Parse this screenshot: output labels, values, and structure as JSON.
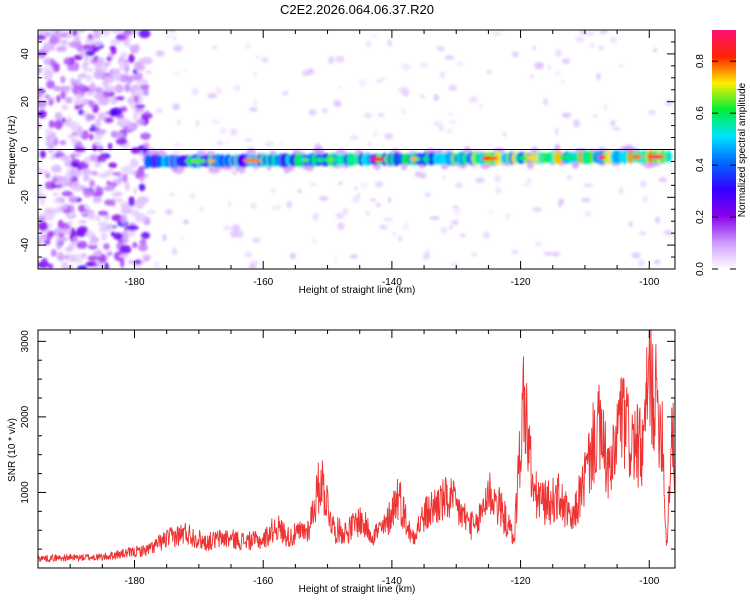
{
  "title": "C2E2.2026.064.06.37.R20",
  "charts": [
    {
      "type": "heatmap",
      "xlabel": "Height of straight line (km)",
      "ylabel": "Frequency (Hz)",
      "xlim": [
        -195,
        -96
      ],
      "ylim": [
        -50,
        50
      ],
      "xticks": [
        -180,
        -160,
        -140,
        -120,
        -100
      ],
      "yticks": [
        -40,
        -20,
        0,
        20,
        40
      ],
      "xtick_labels": [
        "-180",
        "-160",
        "-140",
        "-120",
        "-100"
      ],
      "ytick_labels": [
        "-40",
        "-20",
        "0",
        "20",
        "40"
      ],
      "colorbar": {
        "label": "Normalized spectral amplitude",
        "range": [
          0,
          0.92
        ],
        "ticks": [
          0,
          0.2,
          0.4,
          0.6,
          0.8
        ],
        "tick_labels": [
          "0.0",
          "0.2",
          "0.4",
          "0.6",
          "0.8"
        ],
        "colors": [
          "#ffffff",
          "#cc99ff",
          "#8800ee",
          "#3300ff",
          "#0066ff",
          "#00e5ff",
          "#00ee33",
          "#ffee00",
          "#ff2200",
          "#ff1177"
        ]
      },
      "signal_band": {
        "x_start": -178,
        "x_end": -97,
        "freq_at_start": -5,
        "freq_at_end": -3
      }
    },
    {
      "type": "line",
      "xlabel": "Height of straight line (km)",
      "ylabel": "SNR (10 * v/v)",
      "xlim": [
        -195,
        -96
      ],
      "ylim": [
        0,
        3150
      ],
      "xticks": [
        -180,
        -160,
        -140,
        -120,
        -100
      ],
      "yticks": [
        1000,
        2000,
        3000
      ],
      "xtick_labels": [
        "-180",
        "-160",
        "-140",
        "-120",
        "-100"
      ],
      "ytick_labels": [
        "1000",
        "2000",
        "3000"
      ],
      "color": "#ee3333",
      "envelope": [
        [
          -195,
          150
        ],
        [
          -185,
          170
        ],
        [
          -178,
          280
        ],
        [
          -175,
          450
        ],
        [
          -172,
          550
        ],
        [
          -169,
          400
        ],
        [
          -166,
          470
        ],
        [
          -163,
          420
        ],
        [
          -160,
          430
        ],
        [
          -158,
          650
        ],
        [
          -156,
          480
        ],
        [
          -153,
          600
        ],
        [
          -151,
          1400
        ],
        [
          -149,
          600
        ],
        [
          -147,
          560
        ],
        [
          -145,
          750
        ],
        [
          -143,
          520
        ],
        [
          -141,
          640
        ],
        [
          -139,
          1150
        ],
        [
          -137,
          480
        ],
        [
          -135,
          800
        ],
        [
          -133,
          1000
        ],
        [
          -131,
          1080
        ],
        [
          -129,
          820
        ],
        [
          -127,
          600
        ],
        [
          -125,
          1200
        ],
        [
          -123,
          900
        ],
        [
          -121,
          450
        ],
        [
          -119.5,
          2700
        ],
        [
          -118,
          1150
        ],
        [
          -116,
          1000
        ],
        [
          -114,
          1100
        ],
        [
          -112,
          700
        ],
        [
          -110,
          1400
        ],
        [
          -108,
          2200
        ],
        [
          -106,
          1400
        ],
        [
          -104.5,
          2400
        ],
        [
          -103,
          2000
        ],
        [
          -101,
          1800
        ],
        [
          -100,
          3050
        ],
        [
          -99,
          2600
        ],
        [
          -98,
          2200
        ],
        [
          -97.3,
          300
        ],
        [
          -96.5,
          2150
        ],
        [
          -96,
          1650
        ]
      ]
    }
  ]
}
